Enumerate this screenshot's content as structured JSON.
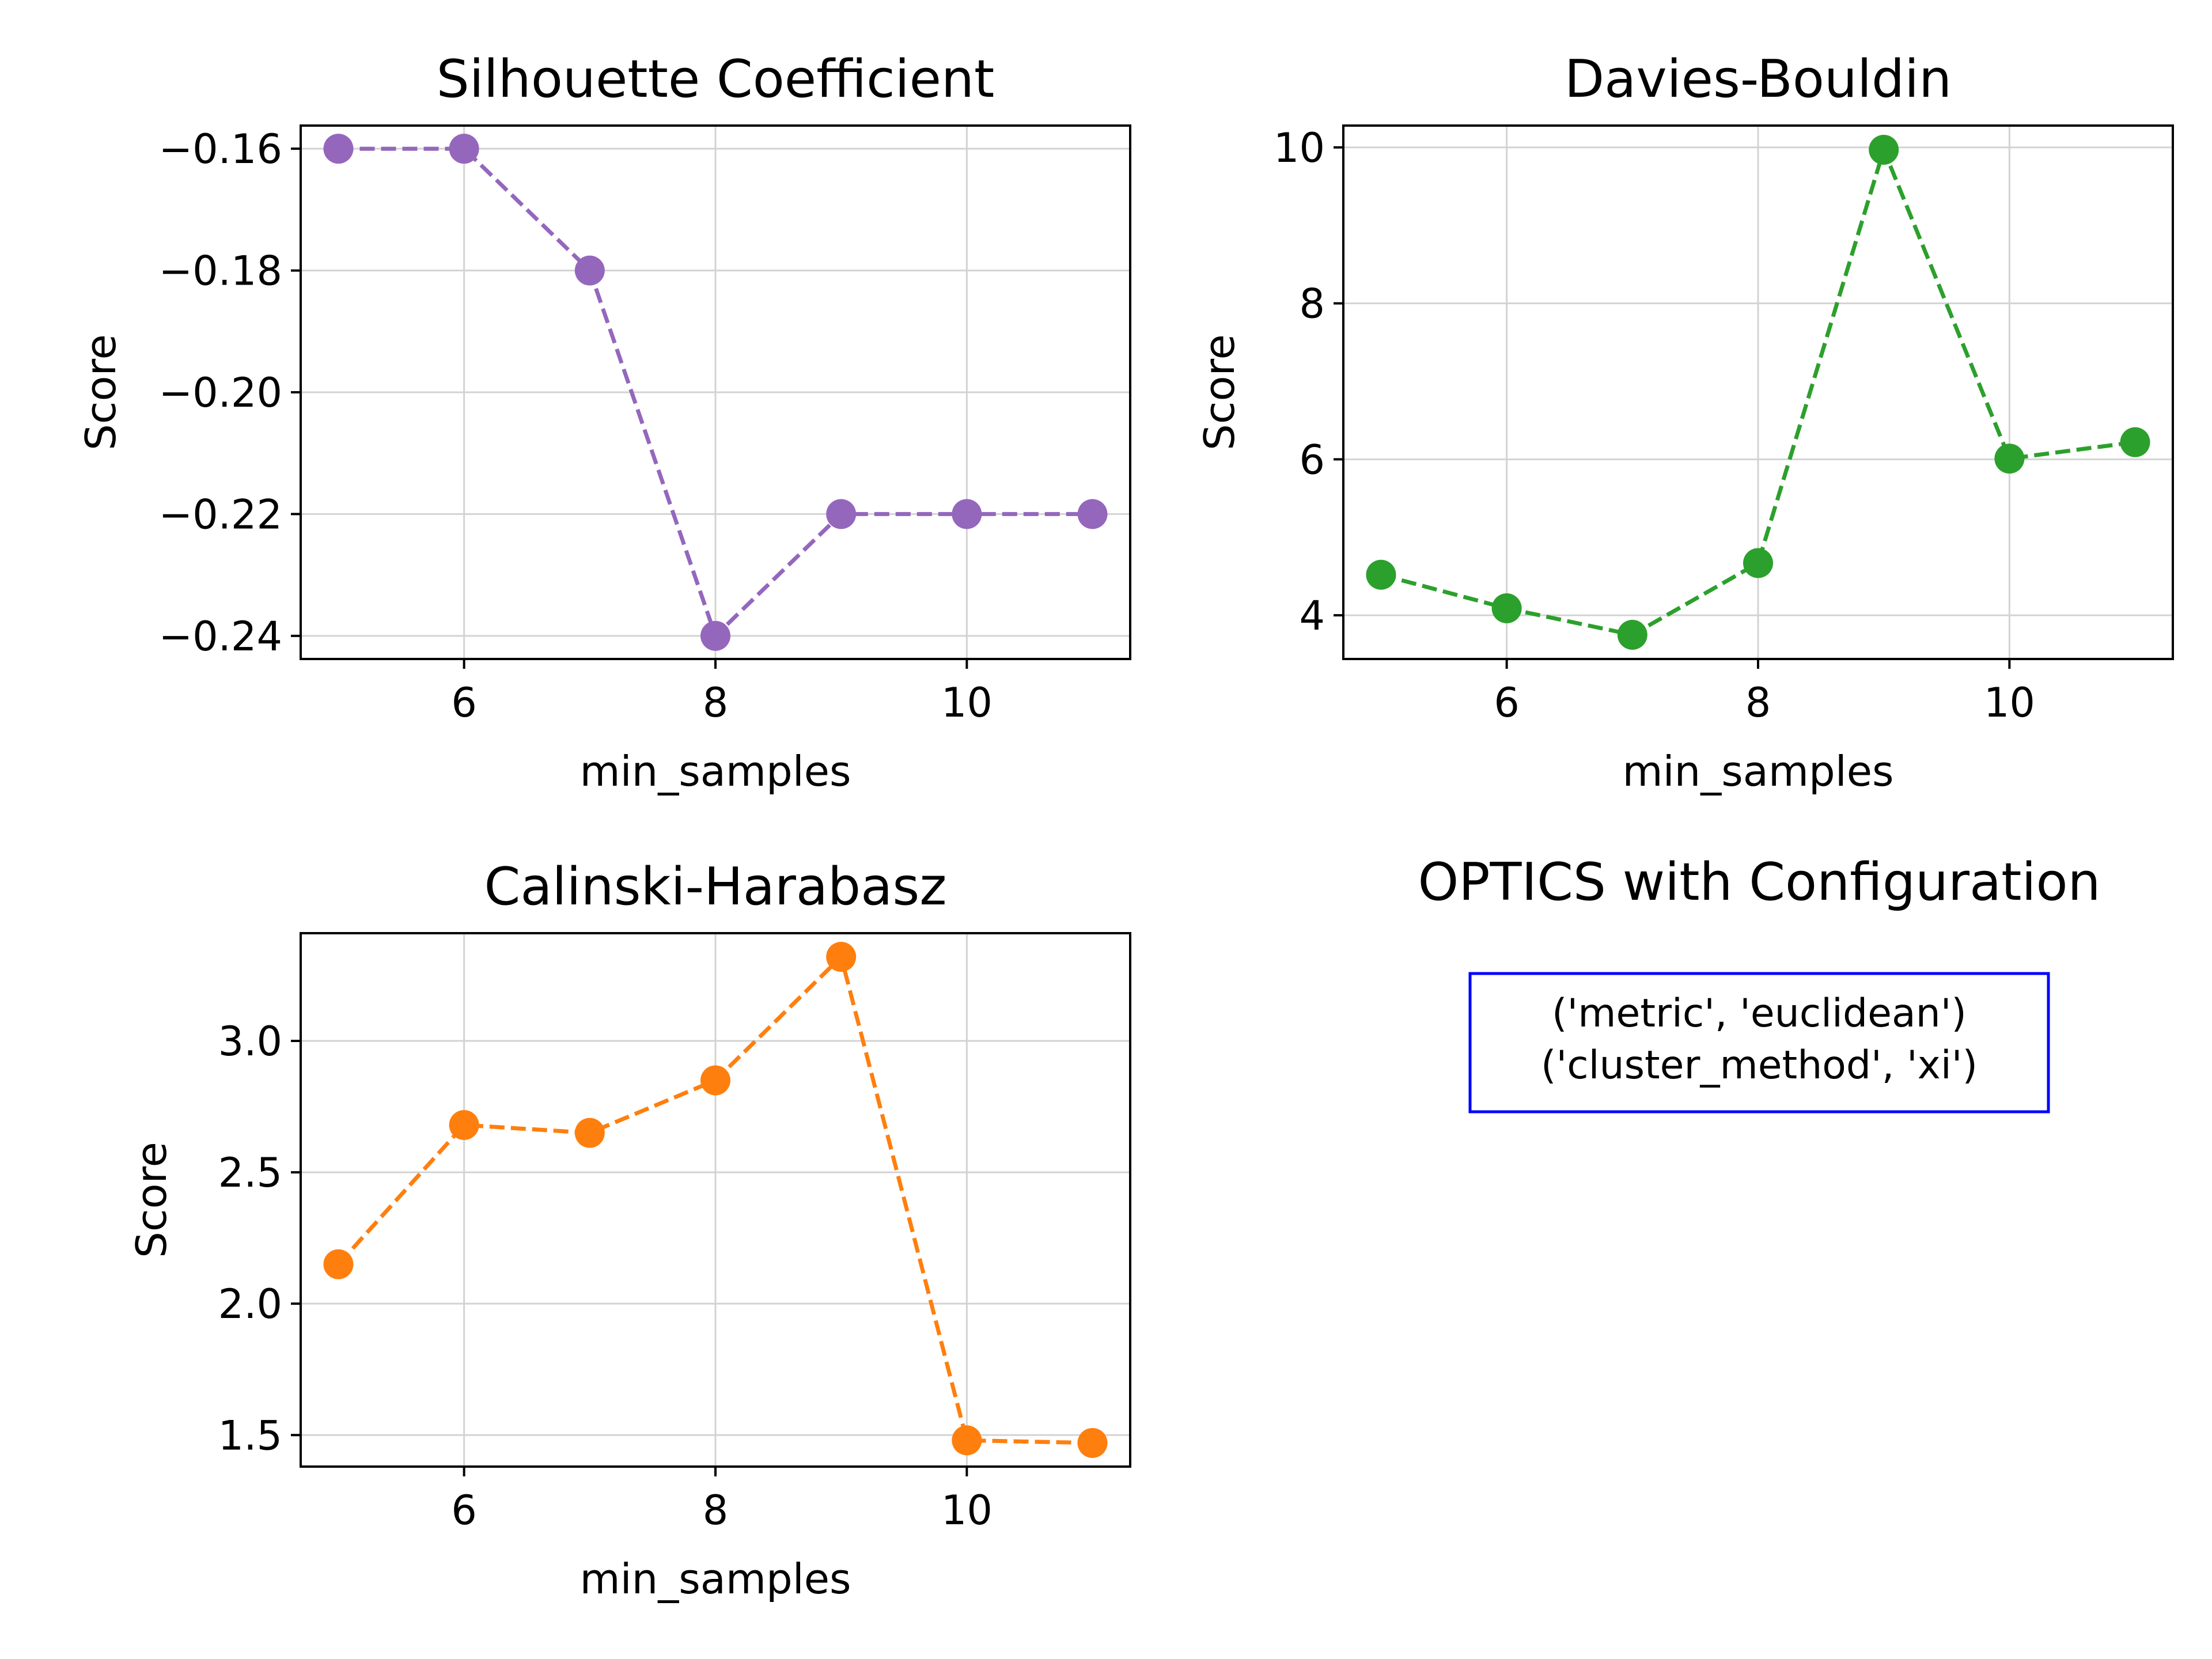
{
  "chart_data": [
    {
      "type": "line",
      "title": "Silhouette Coefficient",
      "xlabel": "min_samples",
      "ylabel": "Score",
      "x": [
        5,
        6,
        7,
        8,
        9,
        10,
        11
      ],
      "series": [
        {
          "values": [
            -0.16,
            -0.16,
            -0.18,
            -0.24,
            -0.22,
            -0.22,
            -0.22
          ],
          "color": "#9467bd"
        }
      ],
      "xlim": [
        4.7,
        11.3
      ],
      "ylim": [
        -0.2438,
        -0.1562
      ],
      "xticks": [
        6,
        8,
        10
      ],
      "xtick_labels": [
        "6",
        "8",
        "10"
      ],
      "yticks": [
        -0.16,
        -0.18,
        -0.2,
        -0.22,
        -0.24
      ],
      "ytick_labels": [
        "−0.16",
        "−0.18",
        "−0.20",
        "−0.22",
        "−0.24"
      ],
      "grid": true
    },
    {
      "type": "line",
      "title": "Davies-Bouldin",
      "xlabel": "min_samples",
      "ylabel": "Score",
      "x": [
        5,
        6,
        7,
        8,
        9,
        10,
        11
      ],
      "series": [
        {
          "values": [
            4.52,
            4.09,
            3.75,
            4.67,
            9.97,
            6.01,
            6.22
          ],
          "color": "#2ca02c"
        }
      ],
      "xlim": [
        4.7,
        11.3
      ],
      "ylim": [
        3.44,
        10.28
      ],
      "xticks": [
        6,
        8,
        10
      ],
      "xtick_labels": [
        "6",
        "8",
        "10"
      ],
      "yticks": [
        4,
        6,
        8,
        10
      ],
      "ytick_labels": [
        "4",
        "6",
        "8",
        "10"
      ],
      "grid": true
    },
    {
      "type": "line",
      "title": "Calinski-Harabasz",
      "xlabel": "min_samples",
      "ylabel": "Score",
      "x": [
        5,
        6,
        7,
        8,
        9,
        10,
        11
      ],
      "series": [
        {
          "values": [
            2.15,
            2.68,
            2.65,
            2.85,
            3.32,
            1.48,
            1.47
          ],
          "color": "#ff7f0e"
        }
      ],
      "xlim": [
        4.7,
        11.3
      ],
      "ylim": [
        1.38,
        3.41
      ],
      "xticks": [
        6,
        8,
        10
      ],
      "xtick_labels": [
        "6",
        "8",
        "10"
      ],
      "yticks": [
        1.5,
        2.0,
        2.5,
        3.0
      ],
      "ytick_labels": [
        "1.5",
        "2.0",
        "2.5",
        "3.0"
      ],
      "grid": true
    }
  ],
  "config_panel": {
    "title": "OPTICS with Configuration",
    "lines": [
      "('metric', 'euclidean')",
      "('cluster_method', 'xi')"
    ],
    "border_color": "#0000ff"
  }
}
